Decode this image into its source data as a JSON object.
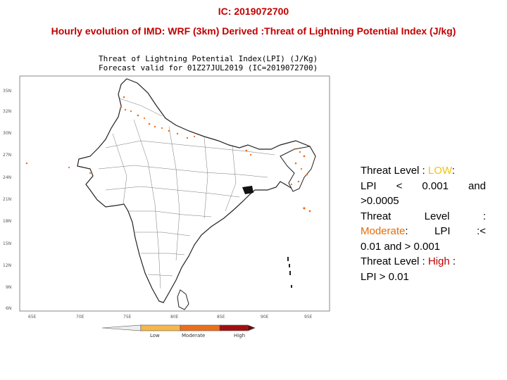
{
  "header": {
    "ic_title": "IC: 2019072700",
    "main_title": "Hourly evolution of IMD: WRF (3km) Derived :Threat of Lightning Potential Index (J/kg)"
  },
  "map": {
    "plot_title_line1": "Threat of Lightning Potential Index(LPI) (J/Kg)",
    "plot_title_line2": "Forecast valid for 01Z27JUL2019 (IC=2019072700)",
    "lat_labels": [
      "35N",
      "32N",
      "30N",
      "27N",
      "24N",
      "21N",
      "18N",
      "15N",
      "12N",
      "9N",
      "6N"
    ],
    "lon_labels": [
      "65E",
      "70E",
      "75E",
      "80E",
      "85E",
      "90E",
      "95E"
    ],
    "colorbar_labels": [
      "Low",
      "Moderate",
      "High"
    ],
    "colors": {
      "low": "#f7b84b",
      "moderate": "#ec6f1c",
      "high": "#a11010"
    }
  },
  "legend": {
    "line1_prefix": "Threat Level : ",
    "line1_level": "LOW",
    "line1_suffix": ":",
    "line2": "LPI < 0.001 and",
    "line3": ">0.0005",
    "line4": "Threat Level :",
    "line5_level": "Moderate",
    "line5_suffix": ": LPI :<",
    "line6": "0.01 and > 0.001",
    "line7_prefix": "Threat Level : ",
    "line7_level": "High",
    "line7_suffix": " :",
    "line8": "LPI > 0.01"
  }
}
